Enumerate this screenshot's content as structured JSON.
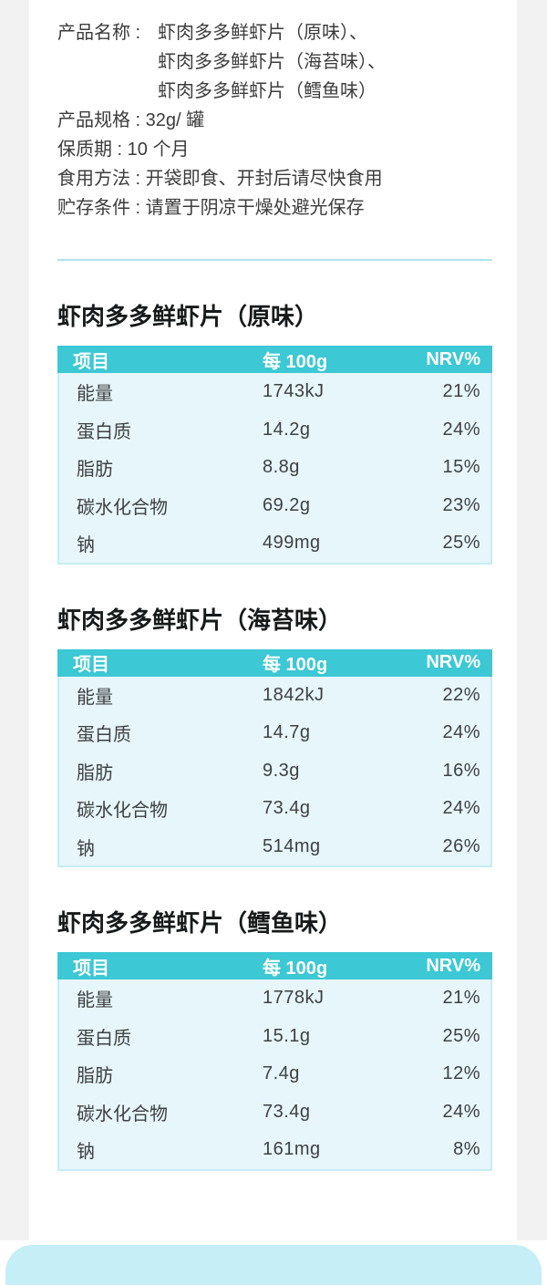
{
  "colors": {
    "page_margin_gray": "#f2f2f2",
    "sheet_white": "#ffffff",
    "table_header_teal": "#3cc8d4",
    "table_body_blue": "#e7f6fa",
    "table_border_cyan": "#c4edf5",
    "divider_cyan": "#aee4ef",
    "bottom_card_blue": "#c5eef7",
    "heading_text": "#17191a",
    "body_text": "#3e4144"
  },
  "info": {
    "lines": [
      {
        "label": "产品名称 :",
        "text": "虾肉多多鲜虾片（原味）、"
      },
      {
        "text": "虾肉多多鲜虾片（海苔味）、"
      },
      {
        "text": "虾肉多多鲜虾片（鳕鱼味）"
      },
      {
        "text": "产品规格 : 32g/ 罐"
      },
      {
        "text": "保质期 : 10 个月"
      },
      {
        "text": "食用方法 : 开袋即食、开封后请尽快食用"
      },
      {
        "text": "贮存条件 : 请置于阴凉干燥处避光保存"
      }
    ]
  },
  "sections": [
    {
      "title": "虾肉多多鲜虾片（原味）",
      "table": {
        "headers": [
          "项目",
          "每 100g",
          "NRV%"
        ],
        "rows": [
          [
            "能量",
            "1743kJ",
            "21%"
          ],
          [
            "蛋白质",
            "14.2g",
            "24%"
          ],
          [
            "脂肪",
            "8.8g",
            "15%"
          ],
          [
            "碳水化合物",
            "69.2g",
            "23%"
          ],
          [
            "钠",
            "499mg",
            "25%"
          ]
        ]
      }
    },
    {
      "title": "虾肉多多鲜虾片（海苔味）",
      "table": {
        "headers": [
          "项目",
          "每 100g",
          "NRV%"
        ],
        "rows": [
          [
            "能量",
            "1842kJ",
            "22%"
          ],
          [
            "蛋白质",
            "14.7g",
            "24%"
          ],
          [
            "脂肪",
            "9.3g",
            "16%"
          ],
          [
            "碳水化合物",
            "73.4g",
            "24%"
          ],
          [
            "钠",
            "514mg",
            "26%"
          ]
        ]
      }
    },
    {
      "title": "虾肉多多鲜虾片（鳕鱼味）",
      "table": {
        "headers": [
          "项目",
          "每 100g",
          "NRV%"
        ],
        "rows": [
          [
            "能量",
            "1778kJ",
            "21%"
          ],
          [
            "蛋白质",
            "15.1g",
            "25%"
          ],
          [
            "脂肪",
            "7.4g",
            "12%"
          ],
          [
            "碳水化合物",
            "73.4g",
            "24%"
          ],
          [
            "钠",
            "161mg",
            "8%"
          ]
        ]
      }
    }
  ]
}
